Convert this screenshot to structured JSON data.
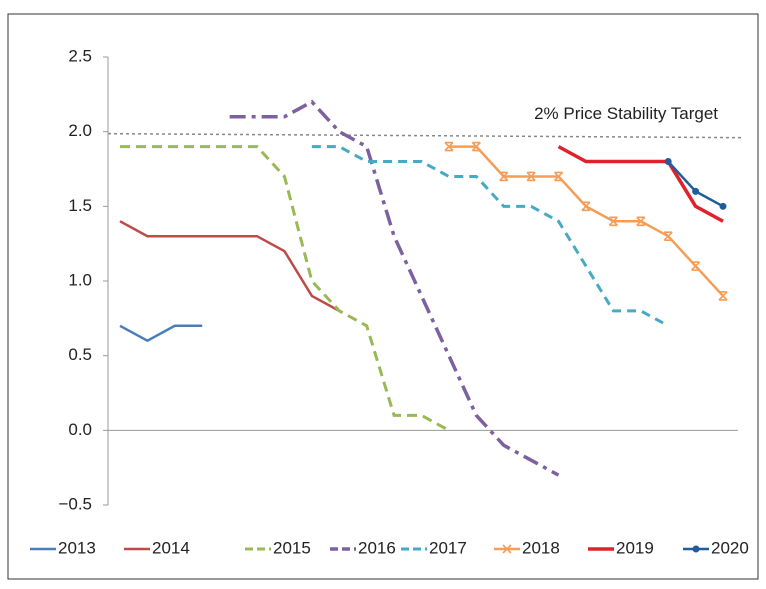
{
  "chart_data": {
    "type": "line",
    "categories": [
      null,
      null,
      null,
      null,
      null,
      null,
      null,
      null,
      null,
      null,
      null,
      null,
      null,
      null,
      null,
      null,
      null,
      null,
      null,
      null,
      null,
      null,
      null
    ],
    "ylim": [
      -0.5,
      2.5
    ],
    "yticks": [
      {
        "value": -0.5,
        "label": "−0.5"
      },
      {
        "value": 0,
        "label": "0.0"
      },
      0.5,
      {
        "value": 1,
        "label": "1.0"
      },
      1.5,
      {
        "value": 2,
        "label": "2.0"
      },
      2.5
    ],
    "target": {
      "value": 2,
      "label": "2% Price Stability Target"
    },
    "series": [
      {
        "name": "2013",
        "color": "#4a7ebb",
        "dash": "none",
        "marker": "none",
        "values": [
          0.7,
          0.6,
          0.7,
          0.7,
          null,
          null,
          null,
          null,
          null,
          null,
          null,
          null,
          null,
          null,
          null,
          null,
          null,
          null,
          null,
          null,
          null,
          null,
          null
        ]
      },
      {
        "name": "2014",
        "color": "#be4b48",
        "dash": "none",
        "marker": "none",
        "values": [
          1.4,
          1.3,
          1.3,
          1.3,
          1.3,
          1.3,
          1.2,
          0.9,
          0.8,
          null,
          null,
          null,
          null,
          null,
          null,
          null,
          null,
          null,
          null,
          null,
          null,
          null,
          null
        ]
      },
      {
        "name": "2015",
        "color": "#98b954",
        "dash": "10 6",
        "marker": "none",
        "values": [
          1.9,
          1.9,
          1.9,
          1.9,
          1.9,
          1.9,
          1.7,
          1.0,
          0.8,
          0.7,
          0.1,
          0.1,
          0.0,
          null,
          null,
          null,
          null,
          null,
          null,
          null,
          null,
          null,
          null
        ]
      },
      {
        "name": "2016",
        "color": "#7d60a0",
        "dash": "16 6 4 6",
        "marker": "none",
        "values": [
          null,
          null,
          null,
          null,
          2.1,
          2.1,
          2.1,
          2.2,
          2.0,
          1.9,
          1.3,
          0.9,
          0.5,
          0.1,
          -0.1,
          -0.2,
          -0.3,
          null,
          null,
          null,
          null,
          null,
          null
        ]
      },
      {
        "name": "2017",
        "color": "#46aac5",
        "dash": "9 6",
        "marker": "none",
        "values": [
          null,
          null,
          null,
          null,
          null,
          null,
          null,
          1.9,
          1.9,
          1.8,
          1.8,
          1.8,
          1.7,
          1.7,
          1.5,
          1.5,
          1.4,
          1.1,
          0.8,
          0.8,
          0.7,
          null,
          null
        ]
      },
      {
        "name": "2018",
        "color": "#f59d56",
        "dash": "none",
        "marker": "cross",
        "values": [
          null,
          null,
          null,
          null,
          null,
          null,
          null,
          null,
          null,
          null,
          null,
          null,
          1.9,
          1.9,
          1.7,
          1.7,
          1.7,
          1.5,
          1.4,
          1.4,
          1.3,
          1.1,
          0.9
        ]
      },
      {
        "name": "2019",
        "color": "#e0202a",
        "dash": "none",
        "marker": "none",
        "values": [
          null,
          null,
          null,
          null,
          null,
          null,
          null,
          null,
          null,
          null,
          null,
          null,
          null,
          null,
          null,
          null,
          1.9,
          1.8,
          1.8,
          1.8,
          1.8,
          1.5,
          1.4
        ]
      },
      {
        "name": "2020",
        "color": "#1f5e9b",
        "dash": "none",
        "marker": "circle",
        "values": [
          null,
          null,
          null,
          null,
          null,
          null,
          null,
          null,
          null,
          null,
          null,
          null,
          null,
          null,
          null,
          null,
          null,
          null,
          null,
          null,
          1.8,
          1.6,
          1.5
        ]
      }
    ]
  }
}
